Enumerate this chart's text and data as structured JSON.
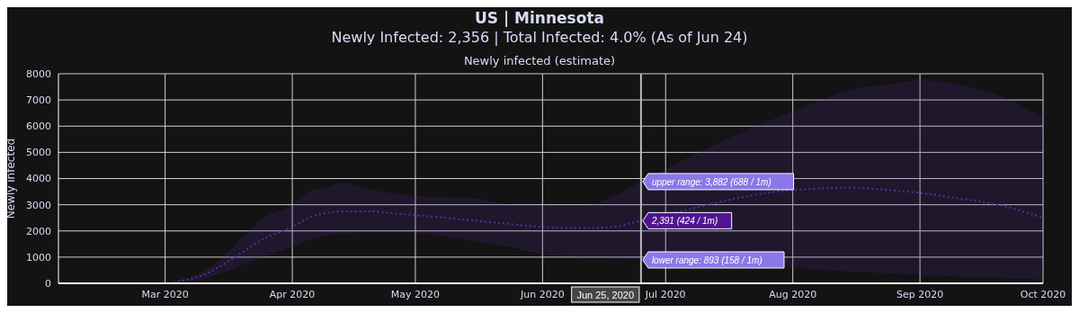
{
  "chart_data": {
    "type": "line",
    "title": "US | Minnesota",
    "subtitle": "Newly Infected: 2,356 | Total Infected: 4.0% (As of Jun 24)",
    "ylabel": "Newly infected",
    "annotations": [
      "Newly infected (estimate)",
      {
        "text": "upper range: 3,882 (688 / 1m)",
        "x": "2020-06-25",
        "y": 3882
      },
      {
        "text": "2,391 (424 / 1m)",
        "x": "2020-06-25",
        "y": 2391
      },
      {
        "text": "lower range: 893 (158 / 1m)",
        "x": "2020-06-25",
        "y": 893
      }
    ],
    "x": [
      "2020-02-20",
      "2020-03-01",
      "2020-03-05",
      "2020-03-10",
      "2020-03-15",
      "2020-03-20",
      "2020-03-25",
      "2020-04-01",
      "2020-04-05",
      "2020-04-10",
      "2020-04-13",
      "2020-04-20",
      "2020-04-27",
      "2020-05-05",
      "2020-05-15",
      "2020-05-25",
      "2020-06-01",
      "2020-06-10",
      "2020-06-18",
      "2020-06-25",
      "2020-07-30",
      "2020-08-05",
      "2020-08-15",
      "2020-08-25",
      "2020-09-01",
      "2020-09-10",
      "2020-09-20",
      "2020-10-01"
    ],
    "series": [
      {
        "color": "#5b2aa0",
        "line_style": "dotted",
        "values": [
          0,
          0,
          100,
          300,
          700,
          1200,
          1700,
          2150,
          2500,
          2700,
          2750,
          2750,
          2650,
          2550,
          2400,
          2250,
          2150,
          2100,
          2150,
          2391,
          3530,
          3600,
          3650,
          3550,
          3450,
          3250,
          3000,
          2500
        ],
        "lower": [
          0,
          0,
          50,
          150,
          400,
          700,
          1000,
          1400,
          1650,
          1850,
          1900,
          1950,
          1950,
          1850,
          1600,
          1350,
          1100,
          1000,
          950,
          893,
          620,
          550,
          450,
          380,
          330,
          260,
          200,
          150
        ],
        "upper": [
          0,
          0,
          150,
          400,
          1000,
          1800,
          2500,
          3000,
          3500,
          3700,
          3850,
          3600,
          3400,
          3300,
          3250,
          3000,
          3000,
          2950,
          3300,
          3882,
          6450,
          6800,
          7400,
          7600,
          7750,
          7600,
          7200,
          6300
        ]
      }
    ],
    "xlim": [
      "2020-02-04",
      "2020-10-01"
    ],
    "xticks": [
      {
        "value": "2020-03-01",
        "label": "Mar 2020"
      },
      {
        "value": "2020-04-01",
        "label": "Apr 2020"
      },
      {
        "value": "2020-05-01",
        "label": "May 2020"
      },
      {
        "value": "2020-06-01",
        "label": "Jun 2020"
      },
      {
        "value": "2020-07-01",
        "label": "Jul 2020"
      },
      {
        "value": "2020-08-01",
        "label": "Aug 2020"
      },
      {
        "value": "2020-09-01",
        "label": "Sep 2020"
      },
      {
        "value": "2020-10-01",
        "label": "Oct 2020"
      }
    ],
    "ylim": [
      0,
      8000
    ],
    "yticks": [
      0,
      1000,
      2000,
      3000,
      4000,
      5000,
      6000,
      7000,
      8000
    ],
    "ref_lines": [
      {
        "axis": "x",
        "value": "2020-06-25",
        "label": "Jun 25, 2020",
        "color": "#bbbbbb"
      }
    ],
    "grid": true,
    "legend": false,
    "marker": "none"
  }
}
